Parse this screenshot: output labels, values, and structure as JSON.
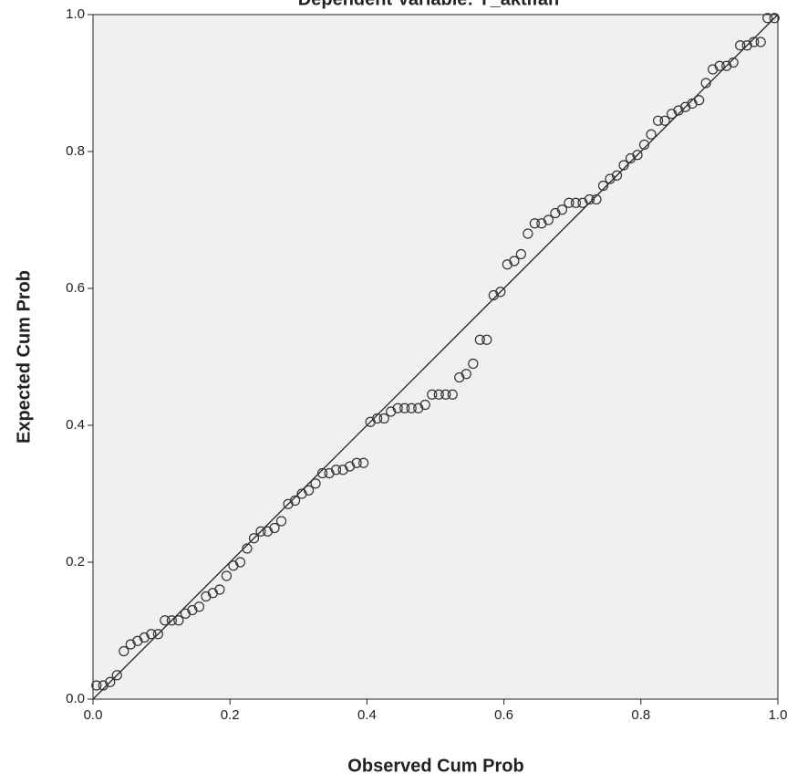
{
  "chart_data": {
    "type": "scatter",
    "title": "Dependent Variable: Y_aktifan",
    "xlabel": "Observed Cum Prob",
    "ylabel": "Expected Cum Prob",
    "x": [
      0.005,
      0.015,
      0.025,
      0.035,
      0.045,
      0.055,
      0.065,
      0.075,
      0.085,
      0.095,
      0.105,
      0.115,
      0.125,
      0.135,
      0.145,
      0.155,
      0.165,
      0.175,
      0.185,
      0.195,
      0.205,
      0.215,
      0.225,
      0.235,
      0.245,
      0.255,
      0.265,
      0.275,
      0.285,
      0.295,
      0.305,
      0.315,
      0.325,
      0.335,
      0.345,
      0.355,
      0.365,
      0.375,
      0.385,
      0.395,
      0.405,
      0.415,
      0.425,
      0.435,
      0.445,
      0.455,
      0.465,
      0.475,
      0.485,
      0.495,
      0.505,
      0.515,
      0.525,
      0.535,
      0.545,
      0.555,
      0.565,
      0.575,
      0.585,
      0.595,
      0.605,
      0.615,
      0.625,
      0.635,
      0.645,
      0.655,
      0.665,
      0.675,
      0.685,
      0.695,
      0.705,
      0.715,
      0.725,
      0.735,
      0.745,
      0.755,
      0.765,
      0.775,
      0.785,
      0.795,
      0.805,
      0.815,
      0.825,
      0.835,
      0.845,
      0.855,
      0.865,
      0.875,
      0.885,
      0.895,
      0.905,
      0.915,
      0.925,
      0.935,
      0.945,
      0.955,
      0.965,
      0.975,
      0.985,
      0.995
    ],
    "values": [
      0.02,
      0.02,
      0.025,
      0.035,
      0.07,
      0.08,
      0.085,
      0.09,
      0.095,
      0.095,
      0.115,
      0.115,
      0.115,
      0.125,
      0.13,
      0.135,
      0.15,
      0.155,
      0.16,
      0.18,
      0.195,
      0.2,
      0.22,
      0.235,
      0.245,
      0.245,
      0.25,
      0.26,
      0.285,
      0.29,
      0.3,
      0.305,
      0.315,
      0.33,
      0.33,
      0.335,
      0.335,
      0.34,
      0.345,
      0.345,
      0.405,
      0.41,
      0.41,
      0.42,
      0.425,
      0.425,
      0.425,
      0.425,
      0.43,
      0.445,
      0.445,
      0.445,
      0.445,
      0.47,
      0.475,
      0.49,
      0.525,
      0.525,
      0.59,
      0.595,
      0.635,
      0.64,
      0.65,
      0.68,
      0.695,
      0.695,
      0.7,
      0.71,
      0.715,
      0.725,
      0.725,
      0.725,
      0.73,
      0.73,
      0.75,
      0.76,
      0.765,
      0.78,
      0.79,
      0.795,
      0.81,
      0.825,
      0.845,
      0.845,
      0.855,
      0.86,
      0.865,
      0.87,
      0.875,
      0.9,
      0.92,
      0.925,
      0.925,
      0.93,
      0.955,
      0.955,
      0.96,
      0.96,
      0.995,
      0.995
    ],
    "color": "#333333",
    "xlim": [
      0,
      1
    ],
    "ylim": [
      0,
      1
    ],
    "xticks": [
      {
        "value": 0,
        "label": "0.0"
      },
      0.2,
      0.4,
      0.6,
      0.8,
      {
        "value": 1,
        "label": "1.0"
      }
    ],
    "yticks": [
      {
        "value": 0,
        "label": "0.0"
      },
      0.2,
      0.4,
      0.6,
      0.8,
      {
        "value": 1,
        "label": "1.0"
      }
    ]
  }
}
